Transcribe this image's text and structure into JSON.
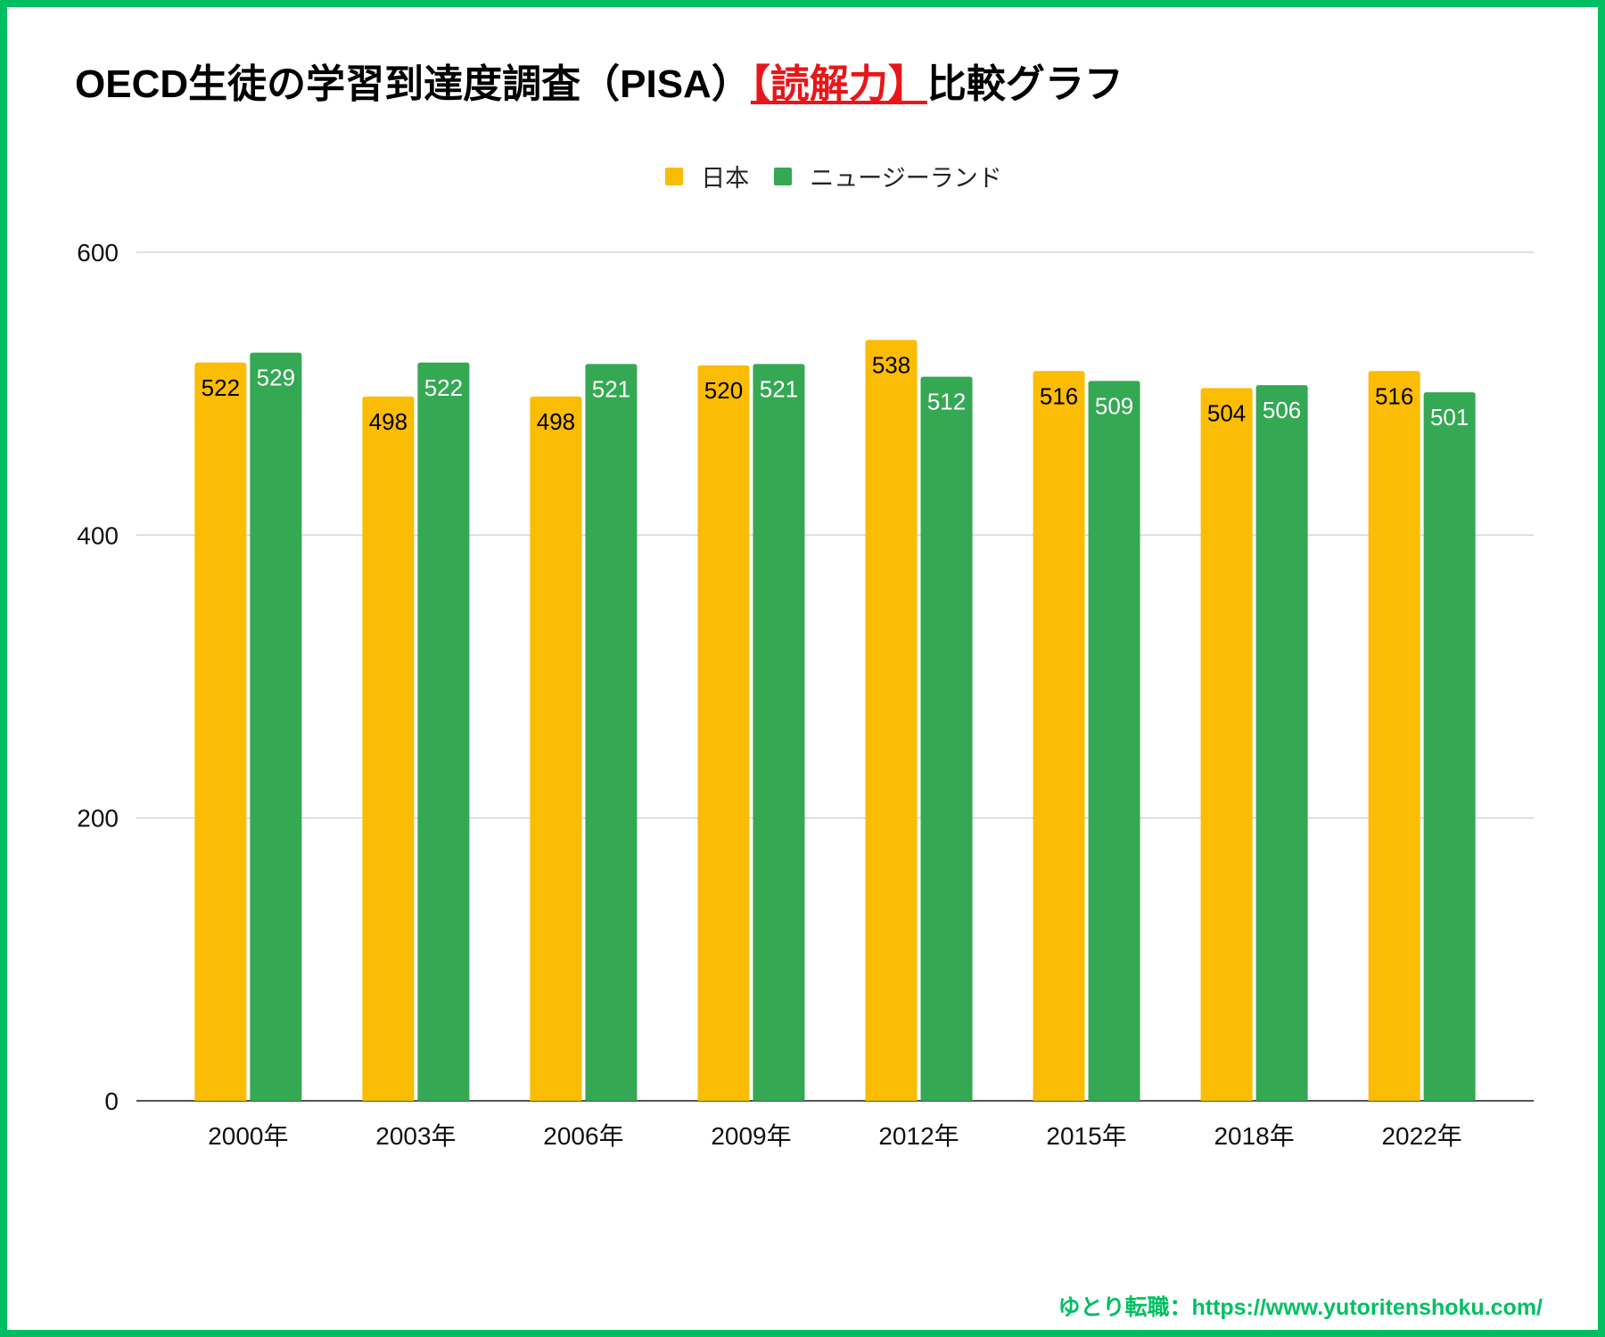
{
  "title": {
    "prefix": "OECD生徒の学習到達度調査（PISA）",
    "highlight": "【読解力】",
    "suffix": "比較グラフ"
  },
  "colors": {
    "border": "#00BF63",
    "highlight": "#E8161A",
    "footer": "#00BF63"
  },
  "footer": {
    "text": "ゆとり転職：https://www.yutoritenshoku.com/"
  },
  "chart_data": {
    "type": "bar",
    "title": "OECD生徒の学習到達度調査（PISA）【読解力】比較グラフ",
    "xlabel": "",
    "ylabel": "",
    "categories": [
      "2000年",
      "2003年",
      "2006年",
      "2009年",
      "2012年",
      "2015年",
      "2018年",
      "2022年"
    ],
    "series": [
      {
        "name": "日本",
        "color": "#FBBC04",
        "label_color": "#000000",
        "values": [
          522,
          498,
          498,
          520,
          538,
          516,
          504,
          516
        ]
      },
      {
        "name": "ニュージーランド",
        "color": "#34A853",
        "label_color": "#ffffff",
        "values": [
          529,
          522,
          521,
          521,
          512,
          509,
          506,
          501
        ]
      }
    ],
    "ylim": [
      0,
      600
    ],
    "yticks": [
      0,
      200,
      400,
      600
    ],
    "grid": true,
    "legend": "top-center",
    "data_labels": true
  }
}
